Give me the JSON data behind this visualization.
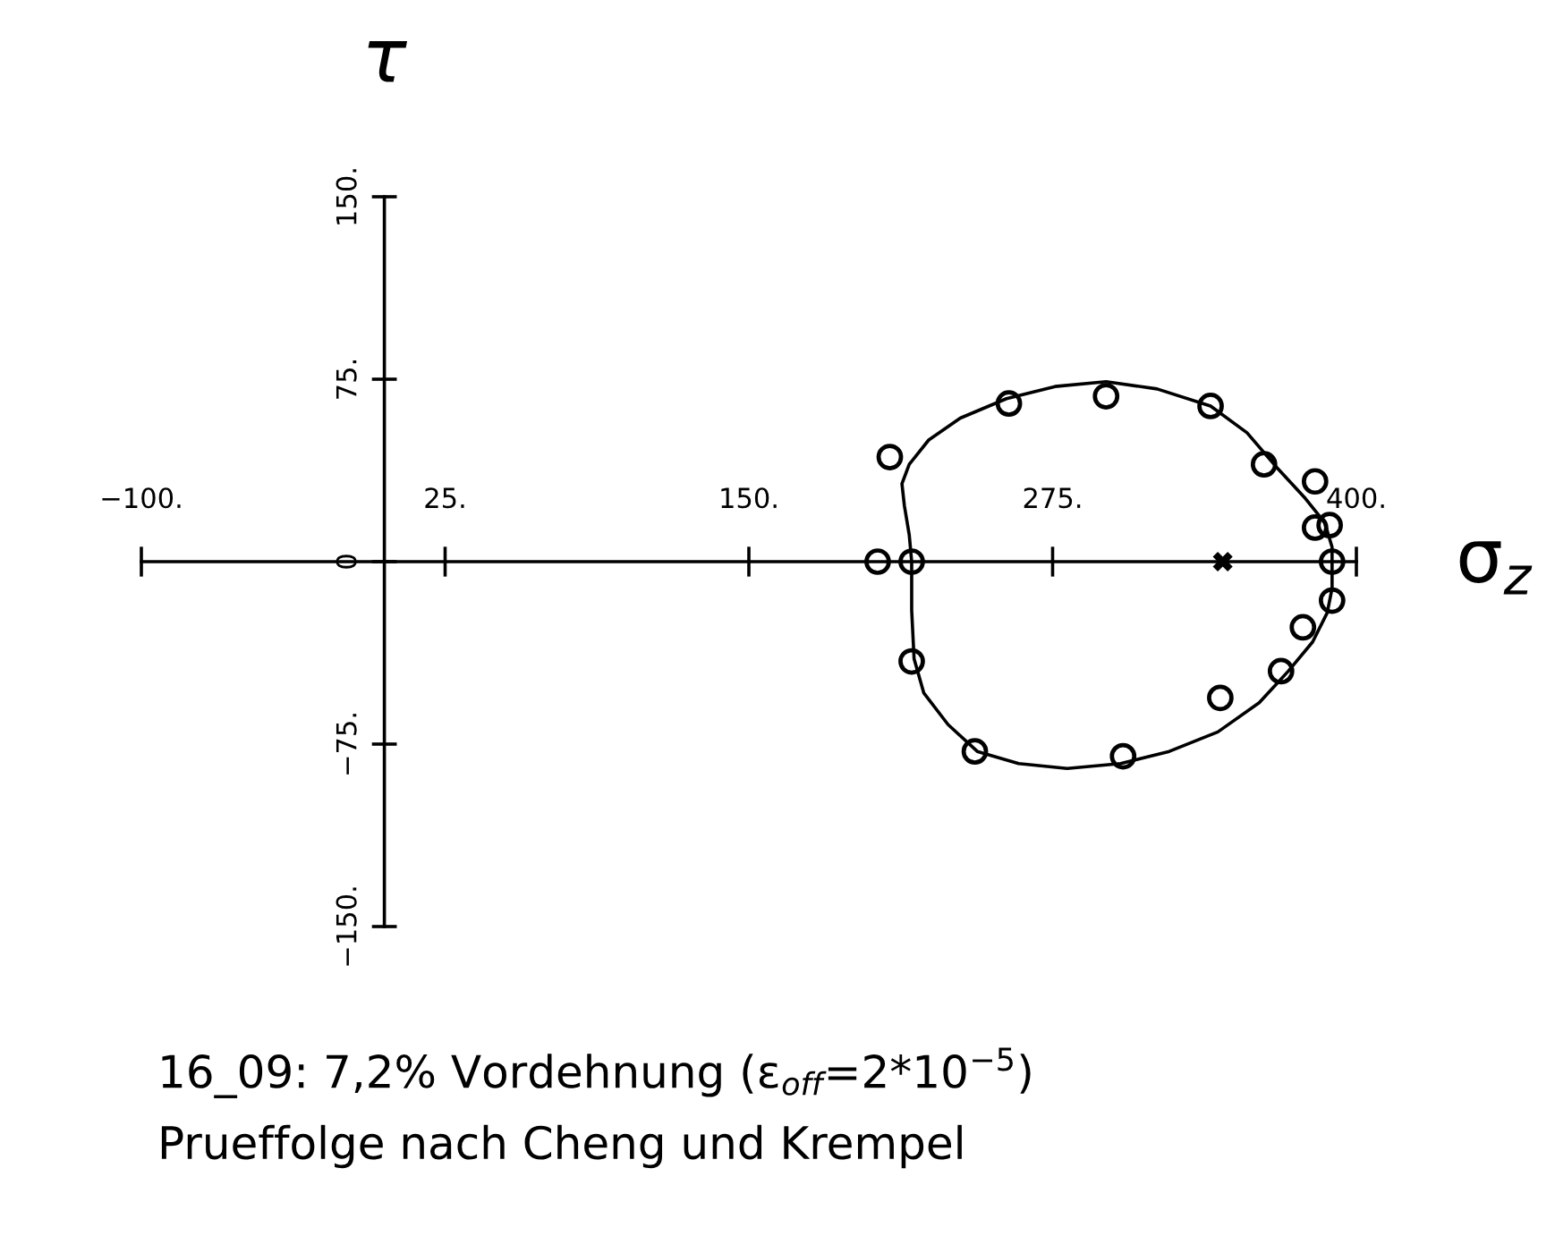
{
  "chart_data": {
    "type": "scatter",
    "xlabel": "σ$_{z}$",
    "ylabel": "τ",
    "annotations": [
      "16_09: 7,2% Vordehnung (ε$_{off}$=2*10$^{−5}$)",
      "Prueffolge nach Cheng und Krempel"
    ],
    "xlim": [
      -100,
      400
    ],
    "ylim": [
      -150,
      150
    ],
    "xticks": [
      {
        "value": -100,
        "label": "−100."
      },
      {
        "value": 25,
        "label": "25."
      },
      {
        "value": 150,
        "label": "150."
      },
      {
        "value": 275,
        "label": "275."
      },
      {
        "value": 400,
        "label": "400."
      }
    ],
    "yticks": [
      {
        "value": -150,
        "label": "−150."
      },
      {
        "value": -75,
        "label": "−75."
      },
      0,
      {
        "value": 75,
        "label": "75."
      },
      {
        "value": 150,
        "label": "150."
      }
    ],
    "series": [
      {
        "color": "#000000",
        "marker": "circle",
        "x": [
          203,
          217,
          208,
          257,
          297,
          340,
          362,
          383,
          383,
          389,
          390,
          390,
          378,
          369,
          344,
          304,
          243,
          217
        ],
        "values": [
          0,
          0,
          43,
          65,
          68,
          64,
          40,
          33,
          14,
          15,
          0,
          -16,
          -27,
          -45,
          -56,
          -80,
          -78,
          -41
        ]
      },
      {
        "color": "#000000",
        "marker": "cross",
        "x": [
          345
        ],
        "values": [
          0
        ]
      }
    ]
  }
}
